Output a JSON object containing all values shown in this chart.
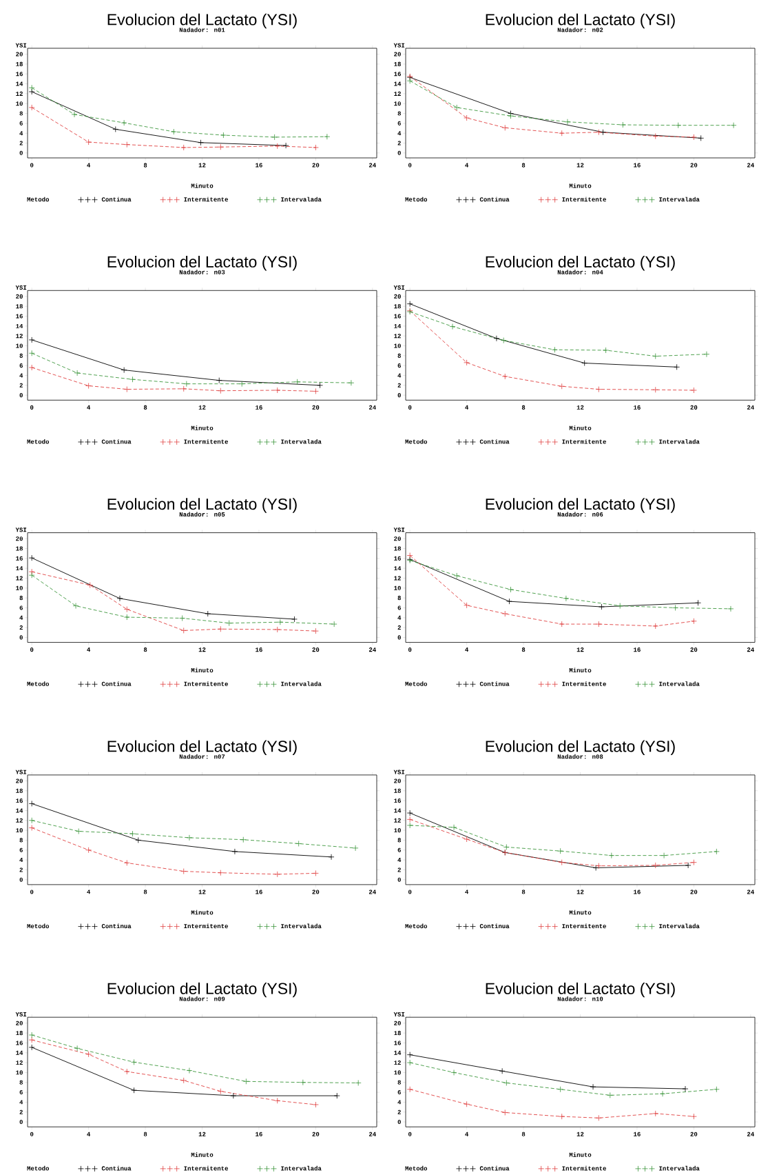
{
  "chart_data": [
    {
      "type": "line",
      "title": "Evolucion del Lactato (YSI)",
      "subtitle": "Nadador: n01",
      "xlabel": "Minuto",
      "ylabel": "YSI",
      "legend_title": "Metodo",
      "legend": "bottom",
      "marker": "cross",
      "xlim": [
        -0.3,
        24.3
      ],
      "ylim": [
        -1,
        21.2
      ],
      "xticks": [
        0,
        4,
        8,
        12,
        16,
        20,
        24
      ],
      "yticks": [
        0,
        2,
        4,
        6,
        8,
        10,
        12,
        14,
        16,
        18,
        20
      ],
      "series": [
        {
          "name": "Continua",
          "color": "#000000",
          "line_style": "solid",
          "x": [
            0,
            5.9,
            11.9,
            17.9
          ],
          "values": [
            12.4,
            4.8,
            2.1,
            1.5
          ]
        },
        {
          "name": "Intermitente",
          "color": "#e04040",
          "line_style": "dashed",
          "x": [
            0,
            4,
            6.7,
            10.7,
            13.3,
            17.3,
            20
          ],
          "values": [
            9.2,
            2.2,
            1.7,
            1.1,
            1.2,
            1.4,
            1.1
          ]
        },
        {
          "name": "Intervalada",
          "color": "#3c963c",
          "line_style": "dashed",
          "x": [
            0,
            3,
            6.5,
            10,
            13.5,
            17.1,
            20.8
          ],
          "values": [
            13.2,
            7.8,
            6.1,
            4.3,
            3.6,
            3.2,
            3.3
          ]
        }
      ]
    },
    {
      "type": "line",
      "title": "Evolucion del Lactato (YSI)",
      "subtitle": "Nadador: n02",
      "xlabel": "Minuto",
      "ylabel": "YSI",
      "legend_title": "Metodo",
      "legend": "bottom",
      "marker": "cross",
      "xlim": [
        -0.3,
        24.3
      ],
      "ylim": [
        -1,
        21.2
      ],
      "xticks": [
        0,
        4,
        8,
        12,
        16,
        20,
        24
      ],
      "yticks": [
        0,
        2,
        4,
        6,
        8,
        10,
        12,
        14,
        16,
        18,
        20
      ],
      "series": [
        {
          "name": "Continua",
          "color": "#000000",
          "line_style": "solid",
          "x": [
            0,
            7.1,
            13.6,
            20.5
          ],
          "values": [
            15.3,
            8.0,
            4.2,
            3.0
          ]
        },
        {
          "name": "Intermitente",
          "color": "#e04040",
          "line_style": "dashed",
          "x": [
            0,
            4,
            6.7,
            10.7,
            13.3,
            17.3,
            20
          ],
          "values": [
            15.5,
            7.1,
            5.1,
            4.0,
            4.2,
            3.4,
            3.2
          ]
        },
        {
          "name": "Intervalada",
          "color": "#3c963c",
          "line_style": "dashed",
          "x": [
            0,
            3.3,
            7.1,
            11.1,
            15,
            18.9,
            22.8
          ],
          "values": [
            14.6,
            9.2,
            7.5,
            6.3,
            5.7,
            5.6,
            5.6
          ]
        }
      ]
    },
    {
      "type": "line",
      "title": "Evolucion del Lactato (YSI)",
      "subtitle": "Nadador: n03",
      "xlabel": "Minuto",
      "ylabel": "YSI",
      "legend_title": "Metodo",
      "legend": "bottom",
      "marker": "cross",
      "xlim": [
        -0.3,
        24.3
      ],
      "ylim": [
        -1,
        21.2
      ],
      "xticks": [
        0,
        4,
        8,
        12,
        16,
        20,
        24
      ],
      "yticks": [
        0,
        2,
        4,
        6,
        8,
        10,
        12,
        14,
        16,
        18,
        20
      ],
      "series": [
        {
          "name": "Continua",
          "color": "#000000",
          "line_style": "solid",
          "x": [
            0,
            6.5,
            13.2,
            20.3
          ],
          "values": [
            11.2,
            5.1,
            3.0,
            2.0
          ]
        },
        {
          "name": "Intermitente",
          "color": "#e04040",
          "line_style": "dashed",
          "x": [
            0,
            4,
            6.7,
            10.7,
            13.3,
            17.3,
            20
          ],
          "values": [
            5.6,
            1.9,
            1.2,
            1.3,
            0.9,
            1.0,
            0.8
          ]
        },
        {
          "name": "Intervalada",
          "color": "#3c963c",
          "line_style": "dashed",
          "x": [
            0,
            3.2,
            7.1,
            10.9,
            14.8,
            18.7,
            22.5
          ],
          "values": [
            8.5,
            4.5,
            3.2,
            2.3,
            2.3,
            2.7,
            2.5
          ]
        }
      ]
    },
    {
      "type": "line",
      "title": "Evolucion del Lactato (YSI)",
      "subtitle": "Nadador: n04",
      "xlabel": "Minuto",
      "ylabel": "YSI",
      "legend_title": "Metodo",
      "legend": "bottom",
      "marker": "cross",
      "xlim": [
        -0.3,
        24.3
      ],
      "ylim": [
        -1,
        21.2
      ],
      "xticks": [
        0,
        4,
        8,
        12,
        16,
        20,
        24
      ],
      "yticks": [
        0,
        2,
        4,
        6,
        8,
        10,
        12,
        14,
        16,
        18,
        20
      ],
      "series": [
        {
          "name": "Continua",
          "color": "#000000",
          "line_style": "solid",
          "x": [
            0,
            6.1,
            12.3,
            18.8
          ],
          "values": [
            18.5,
            11.5,
            6.5,
            5.7
          ]
        },
        {
          "name": "Intermitente",
          "color": "#e04040",
          "line_style": "dashed",
          "x": [
            0,
            4,
            6.7,
            10.7,
            13.3,
            17.3,
            20
          ],
          "values": [
            17.1,
            6.6,
            3.8,
            1.8,
            1.2,
            1.1,
            1.0
          ]
        },
        {
          "name": "Intervalada",
          "color": "#3c963c",
          "line_style": "dashed",
          "x": [
            0,
            3,
            6.6,
            10.2,
            13.8,
            17.3,
            20.9
          ],
          "values": [
            16.9,
            13.9,
            11.1,
            9.2,
            9.1,
            7.9,
            8.3
          ]
        }
      ]
    },
    {
      "type": "line",
      "title": "Evolucion del Lactato (YSI)",
      "subtitle": "Nadador: n05",
      "xlabel": "Minuto",
      "ylabel": "YSI",
      "legend_title": "Metodo",
      "legend": "bottom",
      "marker": "cross",
      "xlim": [
        -0.3,
        24.3
      ],
      "ylim": [
        -1,
        21.2
      ],
      "xticks": [
        0,
        4,
        8,
        12,
        16,
        20,
        24
      ],
      "yticks": [
        0,
        2,
        4,
        6,
        8,
        10,
        12,
        14,
        16,
        18,
        20
      ],
      "series": [
        {
          "name": "Continua",
          "color": "#000000",
          "line_style": "solid",
          "x": [
            0,
            6.2,
            12.4,
            18.5
          ],
          "values": [
            16.1,
            7.9,
            4.8,
            3.7
          ]
        },
        {
          "name": "Intermitente",
          "color": "#e04040",
          "line_style": "dashed",
          "x": [
            0,
            4.1,
            6.7,
            10.7,
            13.3,
            17.3,
            20
          ],
          "values": [
            13.3,
            10.6,
            5.7,
            1.4,
            1.7,
            1.6,
            1.3
          ]
        },
        {
          "name": "Intervalada",
          "color": "#3c963c",
          "line_style": "dashed",
          "x": [
            0,
            3.1,
            6.7,
            10.6,
            13.9,
            17.5,
            21.3
          ],
          "values": [
            12.6,
            6.4,
            4.1,
            3.9,
            2.9,
            3.1,
            2.7
          ]
        }
      ]
    },
    {
      "type": "line",
      "title": "Evolucion del Lactato (YSI)",
      "subtitle": "Nadador: n06",
      "xlabel": "Minuto",
      "ylabel": "YSI",
      "legend_title": "Metodo",
      "legend": "bottom",
      "marker": "cross",
      "xlim": [
        -0.3,
        24.3
      ],
      "ylim": [
        -1,
        21.2
      ],
      "xticks": [
        0,
        4,
        8,
        12,
        16,
        20,
        24
      ],
      "yticks": [
        0,
        2,
        4,
        6,
        8,
        10,
        12,
        14,
        16,
        18,
        20
      ],
      "series": [
        {
          "name": "Continua",
          "color": "#000000",
          "line_style": "solid",
          "x": [
            0,
            7,
            13.5,
            20.3
          ],
          "values": [
            15.8,
            7.3,
            6.2,
            7.0
          ]
        },
        {
          "name": "Intermitente",
          "color": "#e04040",
          "line_style": "dashed",
          "x": [
            0,
            4,
            6.7,
            10.7,
            13.3,
            17.3,
            20
          ],
          "values": [
            16.6,
            6.5,
            4.8,
            2.7,
            2.7,
            2.3,
            3.3
          ]
        },
        {
          "name": "Intervalada",
          "color": "#3c963c",
          "line_style": "dashed",
          "x": [
            0,
            3.3,
            7.1,
            11,
            14.8,
            18.7,
            22.6
          ],
          "values": [
            15.6,
            12.5,
            9.7,
            7.9,
            6.4,
            6.0,
            5.8
          ]
        }
      ]
    },
    {
      "type": "line",
      "title": "Evolucion del Lactato (YSI)",
      "subtitle": "Nadador: n07",
      "xlabel": "Minuto",
      "ylabel": "YSI",
      "legend_title": "Metodo",
      "legend": "bottom",
      "marker": "cross",
      "xlim": [
        -0.3,
        24.3
      ],
      "ylim": [
        -1,
        21.2
      ],
      "xticks": [
        0,
        4,
        8,
        12,
        16,
        20,
        24
      ],
      "yticks": [
        0,
        2,
        4,
        6,
        8,
        10,
        12,
        14,
        16,
        18,
        20
      ],
      "series": [
        {
          "name": "Continua",
          "color": "#000000",
          "line_style": "solid",
          "x": [
            0,
            7.5,
            14.3,
            21.1
          ],
          "values": [
            15.4,
            8.0,
            5.7,
            4.6
          ]
        },
        {
          "name": "Intermitente",
          "color": "#e04040",
          "line_style": "dashed",
          "x": [
            0,
            4,
            6.7,
            10.7,
            13.3,
            17.3,
            20
          ],
          "values": [
            10.5,
            6.0,
            3.4,
            1.7,
            1.4,
            1.1,
            1.3
          ]
        },
        {
          "name": "Intervalada",
          "color": "#3c963c",
          "line_style": "dashed",
          "x": [
            0,
            3.3,
            7.1,
            11.1,
            14.9,
            18.8,
            22.8
          ],
          "values": [
            12.0,
            9.8,
            9.3,
            8.5,
            8.1,
            7.3,
            6.4
          ]
        }
      ]
    },
    {
      "type": "line",
      "title": "Evolucion del Lactato (YSI)",
      "subtitle": "Nadador: n08",
      "xlabel": "Minuto",
      "ylabel": "YSI",
      "legend_title": "Metodo",
      "legend": "bottom",
      "marker": "cross",
      "xlim": [
        -0.3,
        24.3
      ],
      "ylim": [
        -1,
        21.2
      ],
      "xticks": [
        0,
        4,
        8,
        12,
        16,
        20,
        24
      ],
      "yticks": [
        0,
        2,
        4,
        6,
        8,
        10,
        12,
        14,
        16,
        18,
        20
      ],
      "series": [
        {
          "name": "Continua",
          "color": "#000000",
          "line_style": "solid",
          "x": [
            0,
            6.7,
            13.1,
            19.6
          ],
          "values": [
            13.5,
            5.5,
            2.4,
            2.9
          ]
        },
        {
          "name": "Intermitente",
          "color": "#e04040",
          "line_style": "dashed",
          "x": [
            0,
            4,
            6.7,
            10.7,
            13.3,
            17.3,
            20
          ],
          "values": [
            12.2,
            8.2,
            5.5,
            3.5,
            2.8,
            2.9,
            3.5
          ]
        },
        {
          "name": "Intervalada",
          "color": "#3c963c",
          "line_style": "dashed",
          "x": [
            0,
            3.1,
            6.8,
            10.6,
            14.2,
            17.9,
            21.6
          ],
          "values": [
            11.0,
            10.6,
            6.6,
            5.8,
            4.9,
            4.9,
            5.7
          ]
        }
      ]
    },
    {
      "type": "line",
      "title": "Evolucion del Lactato (YSI)",
      "subtitle": "Nadador: n09",
      "xlabel": "Minuto",
      "ylabel": "YSI",
      "legend_title": "Metodo",
      "legend": "bottom",
      "marker": "cross",
      "xlim": [
        -0.3,
        24.3
      ],
      "ylim": [
        -1,
        21.2
      ],
      "xticks": [
        0,
        4,
        8,
        12,
        16,
        20,
        24
      ],
      "yticks": [
        0,
        2,
        4,
        6,
        8,
        10,
        12,
        14,
        16,
        18,
        20
      ],
      "series": [
        {
          "name": "Continua",
          "color": "#000000",
          "line_style": "solid",
          "x": [
            0,
            7.2,
            14.2,
            21.5
          ],
          "values": [
            15.1,
            6.4,
            5.3,
            5.3
          ]
        },
        {
          "name": "Intermitente",
          "color": "#e04040",
          "line_style": "dashed",
          "x": [
            0,
            4,
            6.7,
            10.7,
            13.3,
            17.3,
            20
          ],
          "values": [
            16.6,
            13.7,
            10.2,
            8.4,
            6.2,
            4.3,
            3.5
          ]
        },
        {
          "name": "Intervalada",
          "color": "#3c963c",
          "line_style": "dashed",
          "x": [
            0,
            3.2,
            7.2,
            11.1,
            15.1,
            19.1,
            23
          ],
          "values": [
            17.6,
            14.9,
            12.1,
            10.4,
            8.2,
            8.0,
            7.9
          ]
        }
      ]
    },
    {
      "type": "line",
      "title": "Evolucion del Lactato (YSI)",
      "subtitle": "Nadador: n10",
      "xlabel": "Minuto",
      "ylabel": "YSI",
      "legend_title": "Metodo",
      "legend": "bottom",
      "marker": "cross",
      "xlim": [
        -0.3,
        24.3
      ],
      "ylim": [
        -1,
        21.2
      ],
      "xticks": [
        0,
        4,
        8,
        12,
        16,
        20,
        24
      ],
      "yticks": [
        0,
        2,
        4,
        6,
        8,
        10,
        12,
        14,
        16,
        18,
        20
      ],
      "series": [
        {
          "name": "Continua",
          "color": "#000000",
          "line_style": "solid",
          "x": [
            0,
            6.5,
            12.9,
            19.4
          ],
          "values": [
            13.6,
            10.3,
            7.1,
            6.7
          ]
        },
        {
          "name": "Intermitente",
          "color": "#e04040",
          "line_style": "dashed",
          "x": [
            0,
            4,
            6.7,
            10.7,
            13.3,
            17.3,
            20
          ],
          "values": [
            6.6,
            3.6,
            1.9,
            1.1,
            0.8,
            1.7,
            1.1
          ]
        },
        {
          "name": "Intervalada",
          "color": "#3c963c",
          "line_style": "dashed",
          "x": [
            0,
            3.1,
            6.8,
            10.6,
            14.1,
            17.8,
            21.6
          ],
          "values": [
            12.0,
            10.0,
            7.9,
            6.6,
            5.4,
            5.7,
            6.6
          ]
        }
      ]
    }
  ]
}
